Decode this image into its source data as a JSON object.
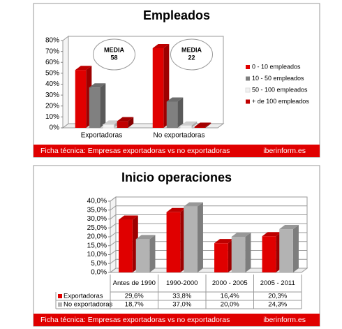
{
  "chart_data": [
    {
      "type": "bar",
      "title": "Empleados",
      "categories": [
        "Exportadoras",
        "No exportadoras"
      ],
      "series": [
        {
          "name": "0 - 10 empleados",
          "color": "#e00000",
          "values": [
            53,
            73
          ]
        },
        {
          "name": "10 - 50 empleados",
          "color": "#808080",
          "values": [
            37,
            24
          ]
        },
        {
          "name": "50 - 100 empleados",
          "color": "#f2f2f2",
          "values": [
            3,
            2
          ]
        },
        {
          "name": "+ de 100 empleados",
          "color": "#c00000",
          "values": [
            6,
            1
          ]
        }
      ],
      "ylim": [
        0,
        80
      ],
      "yticks": [
        {
          "value": 0,
          "label": "0%"
        },
        {
          "value": 10,
          "label": "10%"
        },
        {
          "value": 20,
          "label": "20%"
        },
        {
          "value": 30,
          "label": "30%"
        },
        {
          "value": 40,
          "label": "40%"
        },
        {
          "value": 50,
          "label": "50%"
        },
        {
          "value": 60,
          "label": "60%"
        },
        {
          "value": 70,
          "label": "70%"
        },
        {
          "value": 80,
          "label": "80%"
        }
      ],
      "annotations": [
        {
          "text": "MEDIA",
          "value": "58"
        },
        {
          "text": "MEDIA",
          "value": "22"
        }
      ],
      "grid": false,
      "legend": "right",
      "footer": {
        "left": "Ficha técnica: Empresas exportadoras vs no exportadoras",
        "right": "iberinform.es"
      }
    },
    {
      "type": "bar",
      "title": "Inicio operaciones",
      "categories": [
        "Antes de 1990",
        "1990-2000",
        "2000 - 2005",
        "2005 - 2011"
      ],
      "series": [
        {
          "name": "Exportadoras",
          "color": "#e00000",
          "values": [
            29.6,
            33.8,
            16.4,
            20.3
          ],
          "value_labels": [
            "29,6%",
            "33,8%",
            "16,4%",
            "20,3%"
          ]
        },
        {
          "name": "No exportadoras",
          "color": "#b3b3b3",
          "values": [
            18.7,
            37.0,
            20.0,
            24.3
          ],
          "value_labels": [
            "18,7%",
            "37,0%",
            "20,0%",
            "24,3%"
          ]
        }
      ],
      "ylim": [
        0,
        40
      ],
      "yticks": [
        {
          "value": 0,
          "label": "0,0%"
        },
        {
          "value": 5,
          "label": "5,0%"
        },
        {
          "value": 10,
          "label": "10,0%"
        },
        {
          "value": 15,
          "label": "15,0%"
        },
        {
          "value": 20,
          "label": "20,0%"
        },
        {
          "value": 25,
          "label": "25,0%"
        },
        {
          "value": 30,
          "label": "30,0%"
        },
        {
          "value": 35,
          "label": "35,0%"
        },
        {
          "value": 40,
          "label": "40,0%"
        }
      ],
      "grid": true,
      "legend": "table",
      "data_table": true,
      "footer": {
        "left": "Ficha técnica: Empresas exportadoras vs no exportadoras",
        "right": "iberinform.es"
      }
    }
  ]
}
